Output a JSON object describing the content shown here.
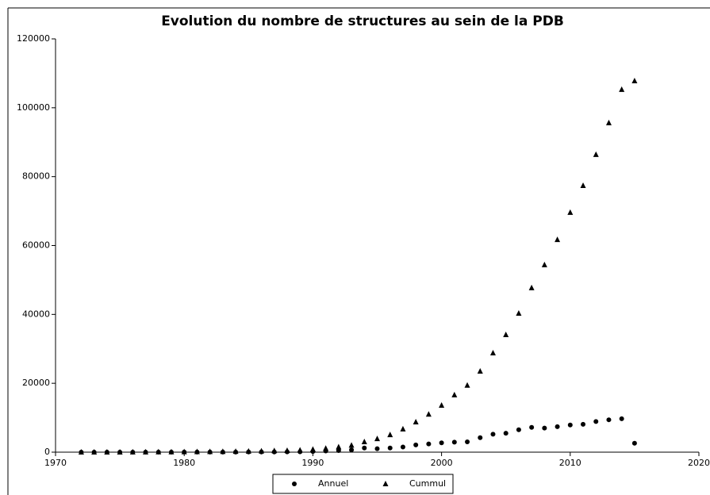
{
  "chart_data": {
    "type": "scatter",
    "title": "Evolution du nombre de structures au sein de la PDB",
    "x": [
      1972,
      1973,
      1974,
      1975,
      1976,
      1977,
      1978,
      1979,
      1980,
      1981,
      1982,
      1983,
      1984,
      1985,
      1986,
      1987,
      1988,
      1989,
      1990,
      1991,
      1992,
      1993,
      1994,
      1995,
      1996,
      1997,
      1998,
      1999,
      2000,
      2001,
      2002,
      2003,
      2004,
      2005,
      2006,
      2007,
      2008,
      2009,
      2010,
      2011,
      2012,
      2013,
      2014,
      2015
    ],
    "series": [
      {
        "name": "Annuel",
        "color": "#000000",
        "marker": "circle",
        "values": [
          1,
          2,
          5,
          5,
          10,
          15,
          15,
          15,
          20,
          25,
          25,
          35,
          40,
          50,
          60,
          70,
          80,
          100,
          200,
          350,
          450,
          650,
          1200,
          1000,
          1200,
          1500,
          2100,
          2400,
          2700,
          2900,
          3000,
          4200,
          5200,
          5500,
          6500,
          7200,
          7000,
          7400,
          7900,
          8100,
          8900,
          9400,
          9700,
          2600
        ]
      },
      {
        "name": "Cummul",
        "color": "#000000",
        "marker": "triangle",
        "values": [
          1,
          3,
          8,
          13,
          23,
          38,
          53,
          68,
          88,
          113,
          138,
          173,
          213,
          263,
          323,
          393,
          473,
          573,
          800,
          1100,
          1500,
          2000,
          3000,
          3900,
          5050,
          6700,
          8750,
          11000,
          13600,
          16600,
          19400,
          23500,
          28800,
          34100,
          40300,
          47700,
          54400,
          61700,
          69600,
          77400,
          86400,
          95600,
          105300,
          107800
        ]
      }
    ],
    "xlim": [
      1970,
      2020
    ],
    "xticks": [
      1970,
      1980,
      1990,
      2000,
      2010,
      2020
    ],
    "ylim": [
      0,
      120000
    ],
    "yticks": [
      0,
      20000,
      40000,
      60000,
      80000,
      100000,
      120000
    ],
    "legend": "bottom"
  }
}
